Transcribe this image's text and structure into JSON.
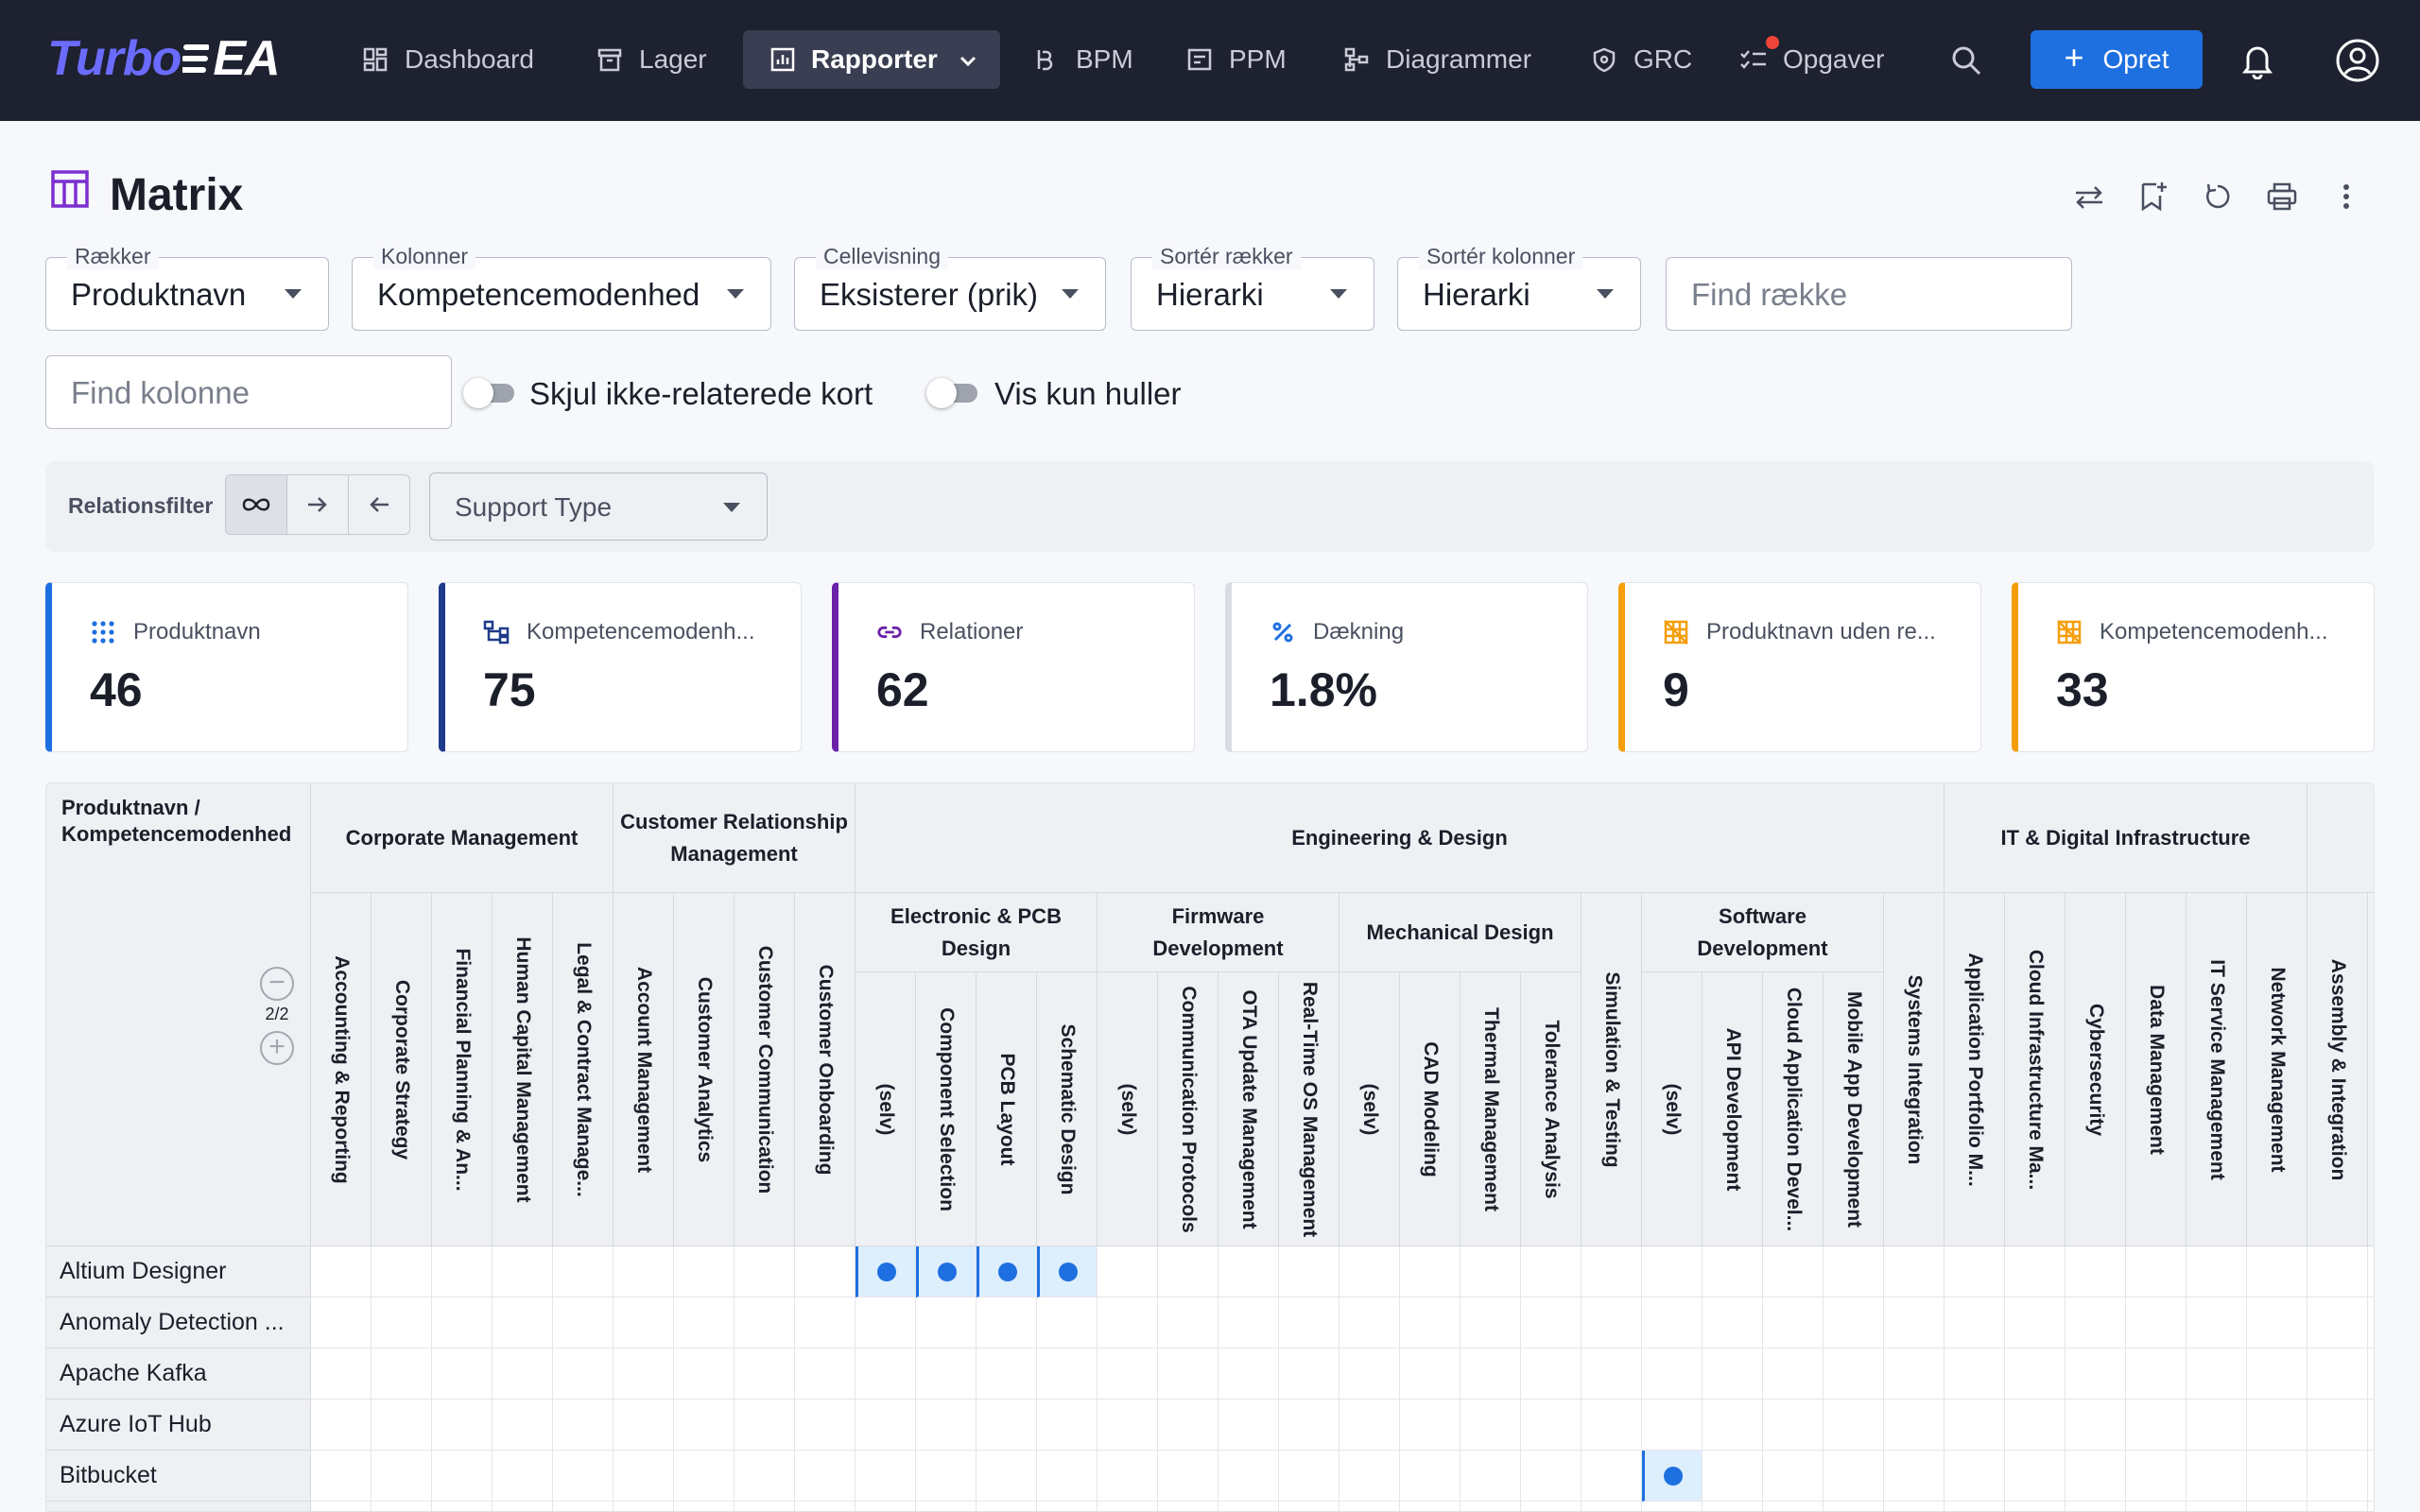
{
  "app": {
    "logo_a": "Turbo",
    "logo_b": "EA"
  },
  "nav": {
    "items": [
      {
        "label": "Dashboard",
        "icon": "dashboard-icon"
      },
      {
        "label": "Lager",
        "icon": "archive-icon"
      },
      {
        "label": "Rapporter",
        "icon": "report-icon",
        "active": true
      },
      {
        "label": "BPM",
        "icon": "bpm-icon"
      },
      {
        "label": "PPM",
        "icon": "ppm-icon"
      },
      {
        "label": "Diagrammer",
        "icon": "diagram-icon"
      },
      {
        "label": "GRC",
        "icon": "shield-icon"
      },
      {
        "label": "Opgaver",
        "icon": "tasks-icon"
      }
    ],
    "create_label": "Opret"
  },
  "page": {
    "title": "Matrix"
  },
  "filters": {
    "rows": {
      "label": "Rækker",
      "value": "Produktnavn"
    },
    "cols": {
      "label": "Kolonner",
      "value": "Kompetencemodenhed"
    },
    "cellview": {
      "label": "Cellevisning",
      "value": "Eksisterer (prik)"
    },
    "sort_rows": {
      "label": "Sortér rækker",
      "value": "Hierarki"
    },
    "sort_cols": {
      "label": "Sortér kolonner",
      "value": "Hierarki"
    },
    "find_row_placeholder": "Find række",
    "find_col_placeholder": "Find kolonne",
    "hide_unrelated": "Skjul ikke-relaterede kort",
    "show_gaps": "Vis kun huller"
  },
  "relfilter": {
    "label": "Relationsfilter",
    "support_placeholder": "Support Type"
  },
  "kpis": [
    {
      "label": "Produktnavn",
      "value": "46",
      "color": "#1e6fe0",
      "icon": "grid-dots-icon"
    },
    {
      "label": "Kompetencemodenh...",
      "value": "75",
      "color": "#1e3a8a",
      "icon": "hierarchy-icon"
    },
    {
      "label": "Relationer",
      "value": "62",
      "color": "#6b21a8",
      "icon": "link-icon"
    },
    {
      "label": "Dækning",
      "value": "1.8%",
      "color": "#d9dce2",
      "icon": "percent-icon"
    },
    {
      "label": "Produktnavn uden re...",
      "value": "9",
      "color": "#f59e0b",
      "icon": "grid-off-icon"
    },
    {
      "label": "Kompetencemodenh...",
      "value": "33",
      "color": "#f59e0b",
      "icon": "grid-off-icon"
    }
  ],
  "matrix": {
    "corner": "Produktnavn / Kompetencemodenhed",
    "level_counter": "2/2",
    "groups": [
      {
        "label": "Corporate Management",
        "span": 5
      },
      {
        "label": "Customer Relationship Management",
        "span": 4
      },
      {
        "label": "Engineering & Design",
        "span": 18
      },
      {
        "label": "IT & Digital Infrastructure",
        "span": 6
      },
      {
        "label": "",
        "span": 2
      }
    ],
    "columns": [
      {
        "label": "Accounting & Reporting",
        "sub": null
      },
      {
        "label": "Corporate Strategy",
        "sub": null
      },
      {
        "label": "Financial Planning & An...",
        "sub": null
      },
      {
        "label": "Human Capital Management",
        "sub": null
      },
      {
        "label": "Legal & Contract Manage...",
        "sub": null
      },
      {
        "label": "Account Management",
        "sub": null
      },
      {
        "label": "Customer Analytics",
        "sub": null
      },
      {
        "label": "Customer Communication",
        "sub": null
      },
      {
        "label": "Customer Onboarding",
        "sub": null
      },
      {
        "label": "(selv)",
        "sub": "Electronic & PCB Design"
      },
      {
        "label": "Component Selection",
        "sub": "Electronic & PCB Design"
      },
      {
        "label": "PCB Layout",
        "sub": "Electronic & PCB Design"
      },
      {
        "label": "Schematic Design",
        "sub": "Electronic & PCB Design"
      },
      {
        "label": "(selv)",
        "sub": "Firmware Development"
      },
      {
        "label": "Communication Protocols",
        "sub": "Firmware Development"
      },
      {
        "label": "OTA Update Management",
        "sub": "Firmware Development"
      },
      {
        "label": "Real-Time OS Management",
        "sub": "Firmware Development"
      },
      {
        "label": "(selv)",
        "sub": "Mechanical Design"
      },
      {
        "label": "CAD Modeling",
        "sub": "Mechanical Design"
      },
      {
        "label": "Thermal Management",
        "sub": "Mechanical Design"
      },
      {
        "label": "Tolerance Analysis",
        "sub": "Mechanical Design"
      },
      {
        "label": "Simulation & Testing",
        "sub": null
      },
      {
        "label": "(selv)",
        "sub": "Software Development"
      },
      {
        "label": "API Development",
        "sub": "Software Development"
      },
      {
        "label": "Cloud Application Devel...",
        "sub": "Software Development"
      },
      {
        "label": "Mobile App Development",
        "sub": "Software Development"
      },
      {
        "label": "Systems Integration",
        "sub": null
      },
      {
        "label": "Application Portfolio M...",
        "sub": null
      },
      {
        "label": "Cloud Infrastructure Ma...",
        "sub": null
      },
      {
        "label": "Cybersecurity",
        "sub": null
      },
      {
        "label": "Data Management",
        "sub": null
      },
      {
        "label": "IT Service Management",
        "sub": null
      },
      {
        "label": "Network Management",
        "sub": null
      },
      {
        "label": "Assembly & Integration",
        "sub": null
      },
      {
        "label": "",
        "sub": null
      }
    ],
    "subgroups": [
      {
        "label": "Electronic & PCB Design",
        "start": 9,
        "span": 4
      },
      {
        "label": "Firmware Development",
        "start": 13,
        "span": 4
      },
      {
        "label": "Mechanical Design",
        "start": 17,
        "span": 4
      },
      {
        "label": "Software Development",
        "start": 22,
        "span": 4
      }
    ],
    "rows": [
      {
        "label": "Altium Designer",
        "hits": [
          9,
          10,
          11,
          12
        ]
      },
      {
        "label": "Anomaly Detection ...",
        "hits": []
      },
      {
        "label": "Apache Kafka",
        "hits": []
      },
      {
        "label": "Azure IoT Hub",
        "hits": []
      },
      {
        "label": "Bitbucket",
        "hits": [
          22
        ]
      },
      {
        "label": "",
        "hits": []
      }
    ]
  }
}
